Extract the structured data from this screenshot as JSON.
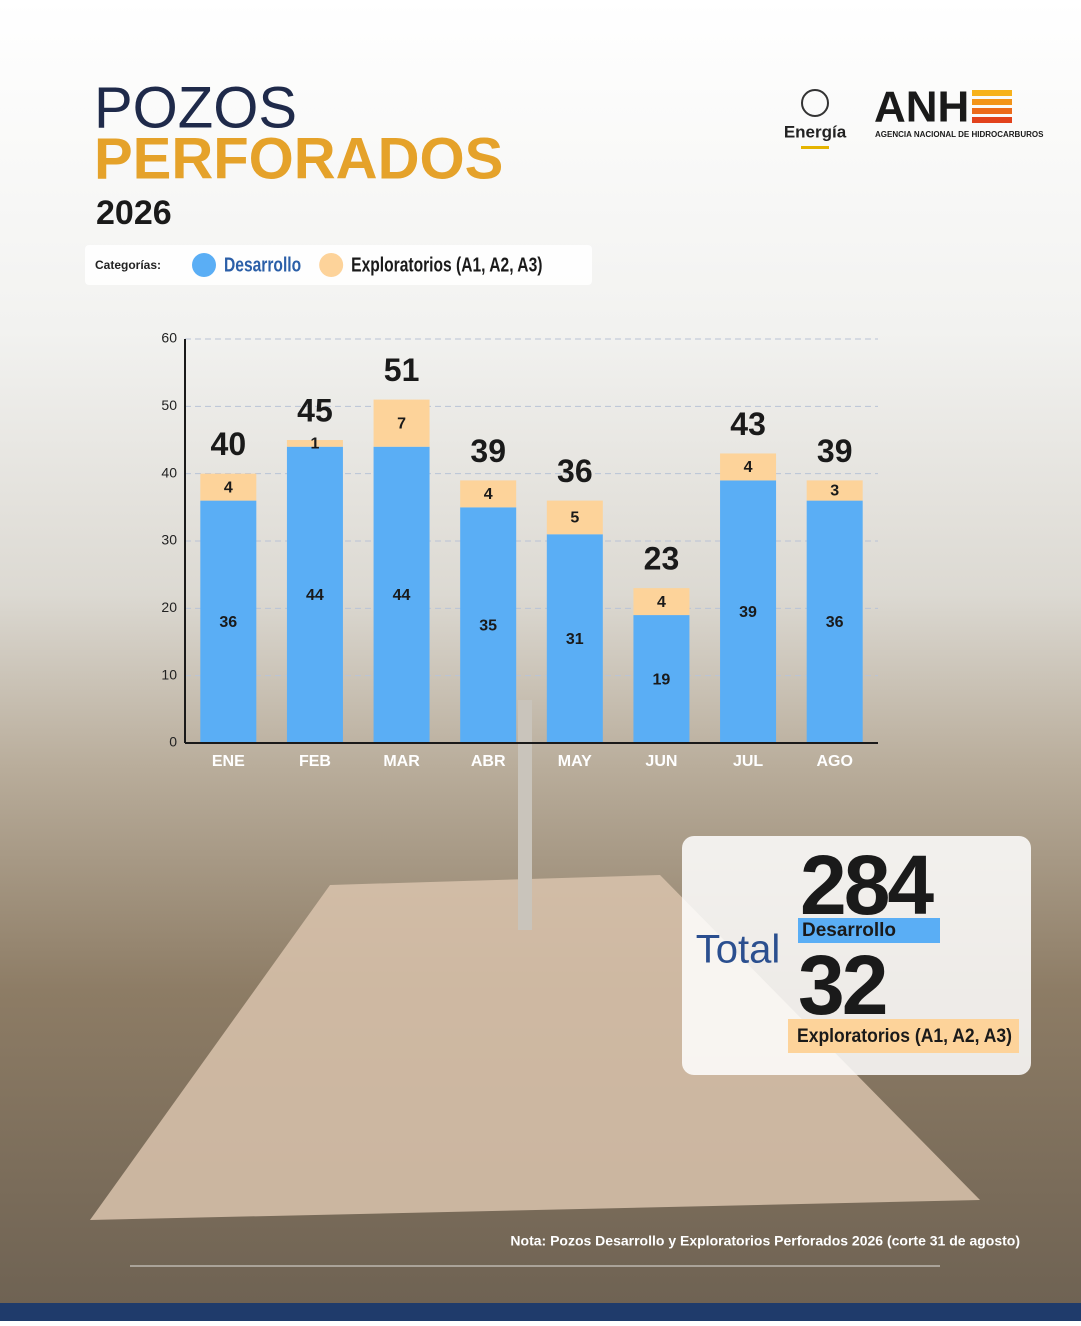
{
  "header": {
    "line1": "POZOS",
    "line2": "PERFORADOS",
    "year": "2026"
  },
  "logos": {
    "ministry": "Energía",
    "agency": "ANH",
    "agency_full": "AGENCIA NACIONAL DE HIDROCARBUROS"
  },
  "legend_label": "Categorías:",
  "summary": {
    "label": "Total",
    "values": [
      284,
      32
    ]
  },
  "note": "Nota: Pozos Desarrollo y Exploratorios Perforados 2026 (corte 31 de agosto)",
  "chart_data": {
    "type": "stacked_bar",
    "categories": [
      "ENE",
      "FEB",
      "MAR",
      "ABR",
      "MAY",
      "JUN",
      "JUL",
      "AGO"
    ],
    "series": [
      {
        "name": "Desarrollo",
        "color": "#5aaef5",
        "values": [
          36,
          44,
          44,
          35,
          31,
          19,
          39,
          36
        ]
      },
      {
        "name": "Exploratorios (A1, A2, A3)",
        "color": "#fdd39a",
        "values": [
          4,
          1,
          7,
          4,
          5,
          4,
          4,
          3
        ]
      }
    ],
    "totals": [
      40,
      45,
      51,
      39,
      36,
      23,
      43,
      39
    ],
    "ylim": [
      0,
      60
    ],
    "yticks": [
      0,
      10,
      20,
      30,
      40,
      50,
      60
    ],
    "grid": true
  }
}
